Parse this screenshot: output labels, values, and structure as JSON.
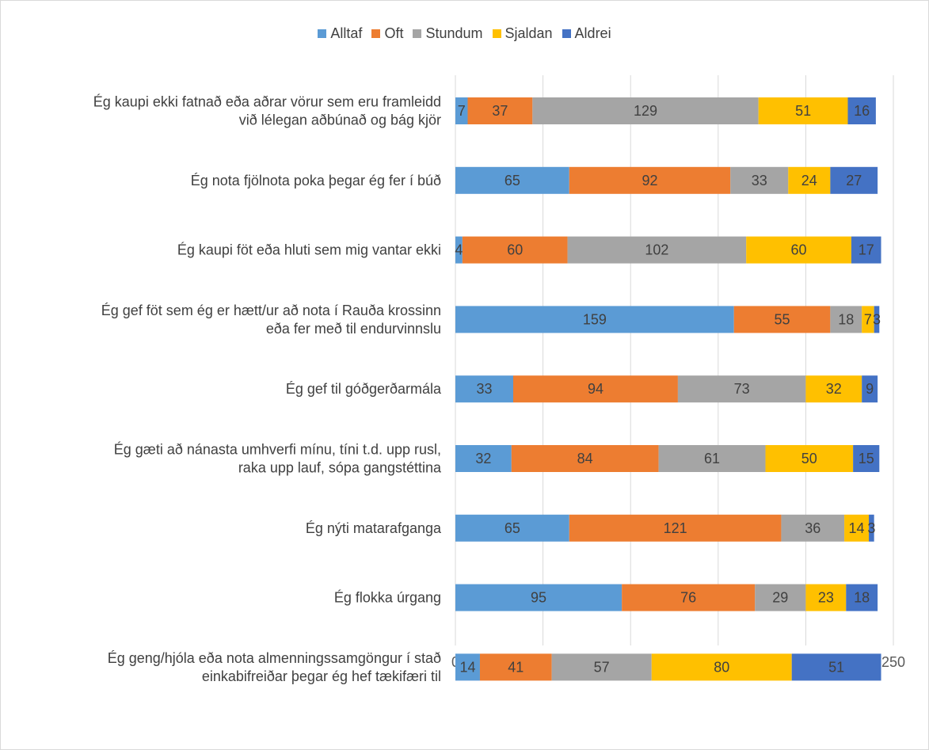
{
  "chart_data": {
    "type": "bar",
    "orientation": "horizontal",
    "stacked": true,
    "categories": [
      "Ég kaupi ekki fatnað eða aðrar vörur sem eru framleidd við lélegan aðbúnað og bág kjör",
      "Ég nota fjölnota poka þegar ég fer í búð",
      "Ég kaupi föt eða hluti sem mig vantar ekki",
      "Ég gef föt sem ég er hætt/ur að nota í Rauða krossinn eða fer með til endurvinnslu",
      "Ég gef til góðgerðarmála",
      "Ég gæti að nánasta umhverfi mínu, tíni t.d. upp rusl, raka upp lauf, sópa gangstéttina",
      "Ég nýti matarafganga",
      "Ég flokka úrgang",
      "Ég geng/hjóla eða nota almenningssamgöngur í stað einkabifreiðar þegar ég hef tækifæri til"
    ],
    "category_lines": [
      [
        "Ég kaupi ekki fatnað eða aðrar vörur sem eru framleidd",
        "við lélegan aðbúnað og bág kjör"
      ],
      [
        "Ég nota fjölnota poka þegar ég fer í búð"
      ],
      [
        "Ég kaupi föt eða hluti sem mig vantar ekki"
      ],
      [
        "Ég gef föt sem ég er hætt/ur að nota í Rauða krossinn",
        "eða fer með til endurvinnslu"
      ],
      [
        "Ég gef til góðgerðarmála"
      ],
      [
        "Ég gæti að nánasta umhverfi mínu, tíni t.d. upp rusl,",
        "raka upp lauf, sópa gangstéttina"
      ],
      [
        "Ég nýti matarafganga"
      ],
      [
        "Ég flokka úrgang"
      ],
      [
        "Ég geng/hjóla eða nota almenningssamgöngur í stað",
        "einkabifreiðar þegar ég hef tækifæri til"
      ]
    ],
    "series": [
      {
        "name": "Alltaf",
        "color": "#5b9bd5",
        "values": [
          7,
          65,
          4,
          159,
          33,
          32,
          65,
          95,
          14
        ]
      },
      {
        "name": "Oft",
        "color": "#ed7d31",
        "values": [
          37,
          92,
          60,
          55,
          94,
          84,
          121,
          76,
          41
        ]
      },
      {
        "name": "Stundum",
        "color": "#a5a5a5",
        "values": [
          129,
          33,
          102,
          18,
          73,
          61,
          36,
          29,
          57
        ]
      },
      {
        "name": "Sjaldan",
        "color": "#ffc000",
        "values": [
          51,
          24,
          60,
          7,
          32,
          50,
          14,
          23,
          80
        ]
      },
      {
        "name": "Aldrei",
        "color": "#4472c4",
        "values": [
          16,
          27,
          17,
          3,
          9,
          15,
          3,
          18,
          51
        ]
      }
    ],
    "xlim": [
      0,
      250
    ],
    "x_ticks": [
      0,
      50,
      100,
      150,
      200,
      250
    ],
    "grid": true,
    "legend_position": "top",
    "title": "",
    "xlabel": "",
    "ylabel": ""
  }
}
